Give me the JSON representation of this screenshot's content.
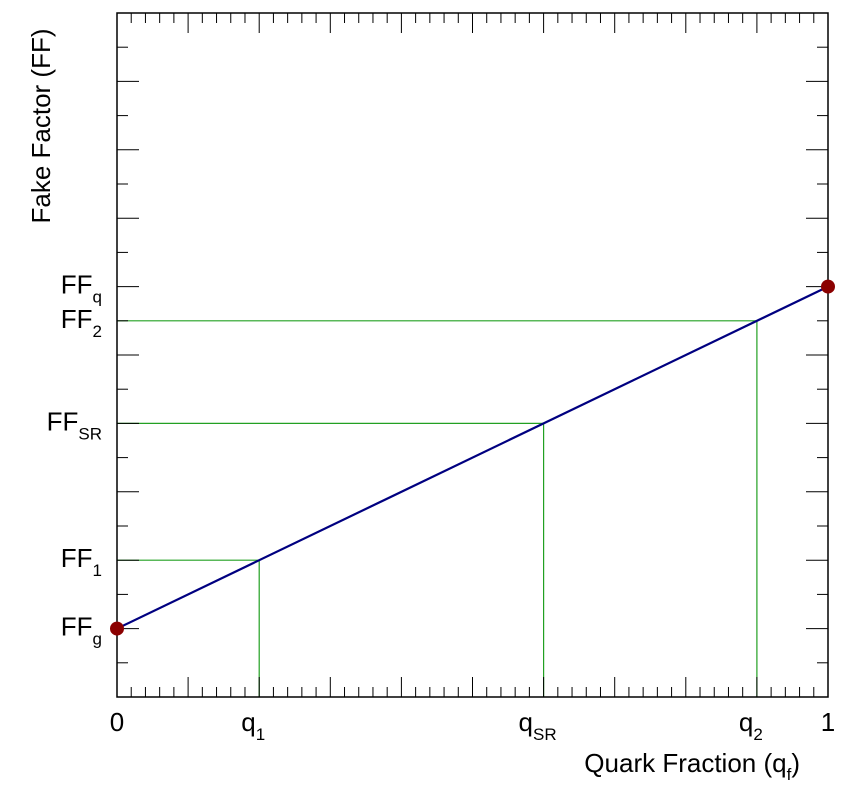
{
  "chart_data": {
    "type": "line",
    "xlabel": "Quark Fraction (q",
    "xlabel_sub": "f",
    "xlabel_close": ")",
    "ylabel": "Fake Factor (FF)",
    "xlim": [
      0,
      1
    ],
    "ylim": [
      0,
      1
    ],
    "grid": false,
    "line": {
      "x": [
        0,
        1
      ],
      "y": [
        0.1,
        0.6
      ],
      "color": "#000080"
    },
    "endpoints": [
      {
        "x": 0,
        "y": 0.1
      },
      {
        "x": 1,
        "y": 0.6
      }
    ],
    "endpoint_color": "#8b0000",
    "guide_color": "#22a022",
    "guides": [
      {
        "x": 0.2,
        "y": 0.2
      },
      {
        "x": 0.6,
        "y": 0.4
      },
      {
        "x": 0.9,
        "y": 0.55
      }
    ],
    "x_ticks": [
      {
        "x": 0,
        "main": "0",
        "sub": ""
      },
      {
        "x": 0.2,
        "main": "q",
        "sub": "1"
      },
      {
        "x": 0.6,
        "main": "q",
        "sub": "SR"
      },
      {
        "x": 0.9,
        "main": "q",
        "sub": "2"
      },
      {
        "x": 1,
        "main": "1",
        "sub": ""
      }
    ],
    "y_ticks": [
      {
        "y": 0.1,
        "main": "FF",
        "sub": "g"
      },
      {
        "y": 0.2,
        "main": "FF",
        "sub": "1"
      },
      {
        "y": 0.4,
        "main": "FF",
        "sub": "SR"
      },
      {
        "y": 0.55,
        "main": "FF",
        "sub": "2"
      },
      {
        "y": 0.6,
        "main": "FF",
        "sub": "q"
      }
    ]
  }
}
